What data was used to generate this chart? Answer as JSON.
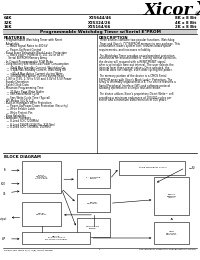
{
  "bg_color": "#ffffff",
  "title_text": "Programmable Watchdog Timer w/Serial E²PROM",
  "logo_text": "Xicor",
  "header_rows": [
    [
      "64K",
      "X25644/46",
      "8K x 8 Bit"
    ],
    [
      "32K",
      "X25324/26",
      "4K x 8 Bit"
    ],
    [
      "16K",
      "X25164/66",
      "2K x 8 Bit"
    ]
  ],
  "features_title": "FEATURES",
  "description_title": "DESCRIPTION",
  "features": [
    "- Programmable Watchdog Timer with Reset",
    "  Adaptable",
    "   — Baud Signal Rates to 400 kV",
    "   — Power-Up Reset Control",
    "- Burst Erase Selectable Block Last™ Protection",
    "   — Block Lock™ Protects 0, 1/4, 1/2 or all of",
    "     Serial EEPROM Memory Array",
    "- In Circuit Programmable ROM Mode",
    "- Long Battery Life With Low Power Consumption",
    "   — 40μA Max Standby Current, Watchdog On",
    "   — <1μA Max Standby Current, Watchdog Off",
    "   — <80μA Max Active Current during Write",
    "   — <800μA Max Active Current during Read",
    "- 1.8V to 5.5V, 2.7V to 5.5V and 3.0V to 5.5V Power",
    "  Supply Operation",
    "- Saves Clock Data",
    "- Minimize Programming Time",
    "   — 32 Byte Page Write Buffer",
    "   — Self-Timed Write Cycle",
    "   — 5ms Write Cycle Time (Typical)",
    "- SPI Modes (0,0 & 1,1)",
    "- Built-in Hardware Write Protection:",
    "   — Power-Up/Power-Down Protection (Security)",
    "   — Write Enable Latch",
    "   — Write Protect Pin",
    "- Page Reliability",
    "- Available Packages",
    "   — 8-Lead SOIC (208Mils)",
    "   — 8-Lead TSSOP (X25635a, X25 Nm)",
    "   — 8-Lead SOIC (305Mils, 150Mils)"
  ],
  "description_text": [
    "These devices combine two popular functions, Watchdog",
    "Timer and Xicor's (\"X\")EEPROM memory in one package. This",
    "combination lowers system cost, reduces board space",
    "requirements, and increases reliability.",
    "",
    "The Watchdog Timer provides an independent protection",
    "mechanism for microcontrollers. During normal operation,",
    "the device will respond with a RESET/RESET signal",
    "after a selectable time out interval. The user selects the",
    "interval from three preset values. Once selected, the",
    "interval does not change, even after cycling the power.",
    "",
    "The memory portion of the device is a CMOS Serial",
    "EEPROM array with Xicor's Block Lock™ Protection. The",
    "array is internally organized as a 8. The device features a",
    "Serial Peripheral Interface (SPI) and software protocol",
    "allowing operation in a simple four-wire mode.",
    "",
    "The device utilizes Xicor's proprietary Direct Write™ cell,",
    "providing a minimum endurance of 100,000 cycles per",
    "sector and a minimum data retention of 100 years."
  ],
  "block_diagram_title": "BLOCK DIAGRAM",
  "footer_left": "Please see Table 3(A), 3(B) Insert Timing",
  "footer_center": "1",
  "footer_right": "Specifications subject to Change without Notice",
  "title_bar_color": "#d0d0d0"
}
